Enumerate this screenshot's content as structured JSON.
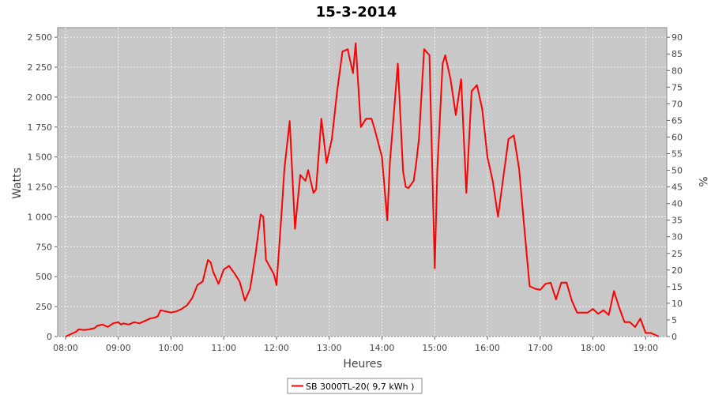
{
  "chart_data": {
    "type": "line",
    "title": "15-3-2014",
    "xlabel": "Heures",
    "ylabel": "Watts",
    "y2label": "%",
    "x_unit": "hours",
    "xlim": [
      7.85,
      19.4
    ],
    "ylim": [
      0,
      2580
    ],
    "y2lim": [
      0,
      92.9
    ],
    "x_ticks": [
      8,
      9,
      10,
      11,
      12,
      13,
      14,
      15,
      16,
      17,
      18,
      19
    ],
    "x_tick_labels": [
      "08:00",
      "09:00",
      "10:00",
      "11:00",
      "12:00",
      "13:00",
      "14:00",
      "15:00",
      "16:00",
      "17:00",
      "18:00",
      "19:00"
    ],
    "y_ticks": [
      0,
      250,
      500,
      750,
      1000,
      1250,
      1500,
      1750,
      2000,
      2250,
      2500
    ],
    "y_tick_labels": [
      "0",
      "250",
      "500",
      "750",
      "1 000",
      "1 250",
      "1 500",
      "1 750",
      "2 000",
      "2 250",
      "2 500"
    ],
    "y2_ticks": [
      0,
      5,
      10,
      15,
      20,
      25,
      30,
      35,
      40,
      45,
      50,
      55,
      60,
      65,
      70,
      75,
      80,
      85,
      90
    ],
    "grid": true,
    "legend_position": "bottom",
    "colors": {
      "series": "#ff0000",
      "plot_bg": "#c8c8c8",
      "grid": "#ffffff"
    },
    "series": [
      {
        "name": "SB 3000TL-20( 9,7 kWh )",
        "x": [
          8.0,
          8.1,
          8.2,
          8.25,
          8.35,
          8.45,
          8.55,
          8.6,
          8.7,
          8.8,
          8.9,
          9.0,
          9.05,
          9.1,
          9.2,
          9.3,
          9.4,
          9.5,
          9.6,
          9.7,
          9.75,
          9.8,
          9.9,
          10.0,
          10.1,
          10.2,
          10.3,
          10.4,
          10.5,
          10.6,
          10.7,
          10.75,
          10.8,
          10.9,
          11.0,
          11.1,
          11.2,
          11.3,
          11.4,
          11.5,
          11.6,
          11.7,
          11.75,
          11.8,
          11.9,
          11.95,
          12.0,
          12.1,
          12.15,
          12.25,
          12.35,
          12.45,
          12.55,
          12.6,
          12.7,
          12.75,
          12.85,
          12.95,
          13.05,
          13.15,
          13.25,
          13.35,
          13.45,
          13.5,
          13.6,
          13.7,
          13.8,
          13.85,
          14.0,
          14.1,
          14.15,
          14.3,
          14.4,
          14.45,
          14.5,
          14.6,
          14.65,
          14.7,
          14.8,
          14.9,
          15.0,
          15.05,
          15.15,
          15.2,
          15.3,
          15.4,
          15.5,
          15.6,
          15.7,
          15.8,
          15.9,
          16.0,
          16.1,
          16.2,
          16.3,
          16.4,
          16.5,
          16.6,
          16.7,
          16.8,
          16.9,
          17.0,
          17.1,
          17.2,
          17.3,
          17.4,
          17.5,
          17.6,
          17.7,
          17.8,
          17.9,
          18.0,
          18.1,
          18.2,
          18.3,
          18.4,
          18.5,
          18.6,
          18.7,
          18.8,
          18.9,
          19.0,
          19.1,
          19.2,
          19.25
        ],
        "y": [
          0,
          20,
          40,
          60,
          55,
          60,
          70,
          90,
          100,
          80,
          110,
          120,
          100,
          110,
          100,
          120,
          110,
          130,
          150,
          160,
          170,
          220,
          210,
          200,
          210,
          230,
          260,
          320,
          430,
          460,
          640,
          620,
          540,
          440,
          560,
          590,
          530,
          460,
          300,
          400,
          680,
          1020,
          1000,
          640,
          560,
          520,
          430,
          1060,
          1400,
          1800,
          900,
          1350,
          1300,
          1390,
          1200,
          1230,
          1820,
          1450,
          1650,
          2050,
          2380,
          2400,
          2200,
          2450,
          1750,
          1820,
          1820,
          1750,
          1500,
          970,
          1450,
          2280,
          1380,
          1250,
          1240,
          1300,
          1450,
          1650,
          2400,
          2350,
          570,
          1400,
          2280,
          2350,
          2150,
          1850,
          2150,
          1200,
          2050,
          2100,
          1900,
          1500,
          1300,
          1000,
          1330,
          1650,
          1680,
          1400,
          900,
          420,
          400,
          390,
          440,
          450,
          310,
          450,
          450,
          300,
          200,
          200,
          200,
          230,
          190,
          220,
          180,
          380,
          240,
          120,
          120,
          80,
          150,
          30,
          30,
          10,
          0
        ]
      }
    ]
  },
  "legend": {
    "label": "SB 3000TL-20( 9,7 kWh )"
  }
}
